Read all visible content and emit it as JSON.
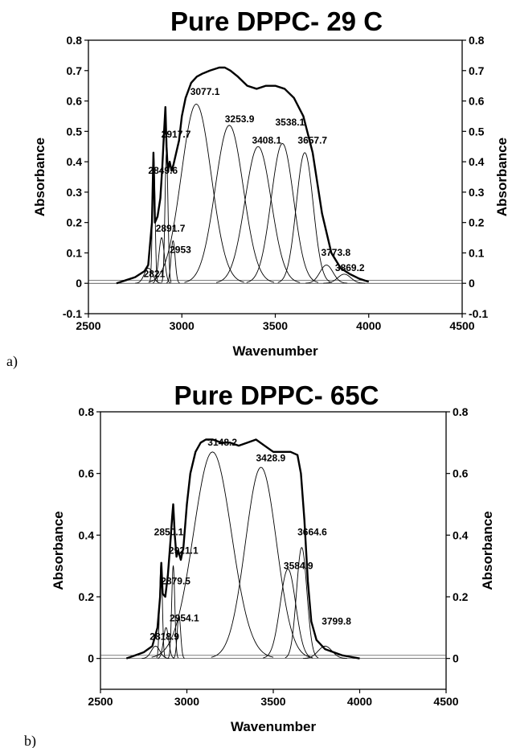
{
  "chart_data": [
    {
      "type": "line",
      "panel_label": "a)",
      "title": "Pure DPPC- 29 C",
      "xlabel": "Wavenumber",
      "ylabel": "Absorbance",
      "ylabel_right": "Absorbance",
      "xlim": [
        2500,
        4500
      ],
      "ylim": [
        -0.1,
        0.8
      ],
      "xticks": [
        2500,
        3000,
        3500,
        4000,
        4500
      ],
      "yticks": [
        -0.1,
        0,
        0.1,
        0.2,
        0.3,
        0.4,
        0.5,
        0.6,
        0.7,
        0.8
      ],
      "ytick_labels": [
        "-0.1",
        "0",
        "0.1",
        "0.2",
        "0.3",
        "0.4",
        "0.5",
        "0.6",
        "0.7",
        "0.8"
      ],
      "grid": false,
      "series": [
        {
          "x": [
            2650,
            2700,
            2750,
            2800,
            2820,
            2840,
            2848,
            2856,
            2870,
            2885,
            2895,
            2905,
            2912,
            2918,
            2925,
            2935,
            2945,
            2955,
            2970,
            2985,
            3000,
            3020,
            3050,
            3080,
            3110,
            3150,
            3200,
            3230,
            3260,
            3300,
            3350,
            3400,
            3450,
            3500,
            3550,
            3600,
            3650,
            3700,
            3750,
            3800,
            3850,
            3900,
            3950,
            4000
          ],
          "y": [
            0.0,
            0.01,
            0.02,
            0.04,
            0.06,
            0.2,
            0.43,
            0.2,
            0.22,
            0.28,
            0.38,
            0.5,
            0.58,
            0.45,
            0.37,
            0.4,
            0.37,
            0.39,
            0.43,
            0.47,
            0.55,
            0.61,
            0.66,
            0.68,
            0.69,
            0.7,
            0.71,
            0.71,
            0.7,
            0.68,
            0.65,
            0.64,
            0.65,
            0.65,
            0.64,
            0.61,
            0.55,
            0.43,
            0.23,
            0.1,
            0.05,
            0.03,
            0.015,
            0.005
          ]
        }
      ],
      "components": [
        {
          "label": "2821",
          "center": 2821,
          "height": 0.05,
          "width": 22,
          "label_x": 2795,
          "label_y": 0.02
        },
        {
          "label": "2849.6",
          "center": 2849.6,
          "height": 0.42,
          "width": 7,
          "label_x": 2820,
          "label_y": 0.36
        },
        {
          "label": "2891.7",
          "center": 2891.7,
          "height": 0.15,
          "width": 15,
          "label_x": 2860,
          "label_y": 0.17
        },
        {
          "label": "2917.7",
          "center": 2917.7,
          "height": 0.43,
          "width": 8,
          "label_x": 2890,
          "label_y": 0.48
        },
        {
          "label": "2953",
          "center": 2953,
          "height": 0.14,
          "width": 11,
          "label_x": 2935,
          "label_y": 0.1
        },
        {
          "label": "3077.1",
          "center": 3077.1,
          "height": 0.59,
          "width": 80,
          "label_x": 3045,
          "label_y": 0.62
        },
        {
          "label": "3253.9",
          "center": 3253.9,
          "height": 0.52,
          "width": 75,
          "label_x": 3230,
          "label_y": 0.53
        },
        {
          "label": "3408.1",
          "center": 3408.1,
          "height": 0.45,
          "width": 70,
          "label_x": 3375,
          "label_y": 0.46
        },
        {
          "label": "3538.1",
          "center": 3538.1,
          "height": 0.46,
          "width": 60,
          "label_x": 3500,
          "label_y": 0.52
        },
        {
          "label": "3657.7",
          "center": 3657.7,
          "height": 0.43,
          "width": 45,
          "label_x": 3620,
          "label_y": 0.46
        },
        {
          "label": "3773.8",
          "center": 3773.8,
          "height": 0.06,
          "width": 35,
          "label_x": 3745,
          "label_y": 0.09
        },
        {
          "label": "3869.2",
          "center": 3869.2,
          "height": 0.03,
          "width": 35,
          "label_x": 3820,
          "label_y": 0.04
        }
      ]
    },
    {
      "type": "line",
      "panel_label": "b)",
      "title": "Pure DPPC- 65C",
      "xlabel": "Wavenumber",
      "ylabel": "Absorbance",
      "ylabel_right": "Absorbance",
      "xlim": [
        2500,
        4500
      ],
      "ylim": [
        -0.1,
        0.8
      ],
      "xticks": [
        2500,
        3000,
        3500,
        4000,
        4500
      ],
      "yticks": [
        0,
        0.2,
        0.4,
        0.6,
        0.8
      ],
      "ytick_labels": [
        "0",
        "0.2",
        "0.4",
        "0.6",
        "0.8"
      ],
      "grid": false,
      "series": [
        {
          "x": [
            2650,
            2700,
            2750,
            2800,
            2830,
            2845,
            2852,
            2860,
            2875,
            2890,
            2905,
            2915,
            2921,
            2930,
            2940,
            2950,
            2965,
            2980,
            3000,
            3020,
            3050,
            3080,
            3110,
            3150,
            3200,
            3250,
            3300,
            3350,
            3400,
            3450,
            3500,
            3550,
            3600,
            3640,
            3660,
            3680,
            3700,
            3720,
            3750,
            3800,
            3850,
            3900,
            3950,
            4000
          ],
          "y": [
            0.0,
            0.01,
            0.02,
            0.04,
            0.1,
            0.2,
            0.31,
            0.21,
            0.2,
            0.27,
            0.38,
            0.46,
            0.5,
            0.4,
            0.33,
            0.35,
            0.32,
            0.36,
            0.5,
            0.6,
            0.67,
            0.7,
            0.71,
            0.71,
            0.7,
            0.7,
            0.69,
            0.7,
            0.71,
            0.69,
            0.67,
            0.67,
            0.67,
            0.66,
            0.6,
            0.45,
            0.25,
            0.12,
            0.06,
            0.03,
            0.02,
            0.01,
            0.005,
            0.0
          ]
        }
      ],
      "components": [
        {
          "label": "2818.9",
          "center": 2818.9,
          "height": 0.04,
          "width": 25,
          "label_x": 2785,
          "label_y": 0.06
        },
        {
          "label": "2850.1",
          "center": 2850.1,
          "height": 0.31,
          "width": 8,
          "label_x": 2810,
          "label_y": 0.4
        },
        {
          "label": "2879.5",
          "center": 2879.5,
          "height": 0.1,
          "width": 15,
          "label_x": 2850,
          "label_y": 0.24
        },
        {
          "label": "2921.1",
          "center": 2921.1,
          "height": 0.3,
          "width": 9,
          "label_x": 2895,
          "label_y": 0.34
        },
        {
          "label": "2954.1",
          "center": 2954.1,
          "height": 0.14,
          "width": 10,
          "label_x": 2900,
          "label_y": 0.12
        },
        {
          "label": "3148.2",
          "center": 3148.2,
          "height": 0.67,
          "width": 110,
          "label_x": 3120,
          "label_y": 0.69
        },
        {
          "label": "3428.9",
          "center": 3428.9,
          "height": 0.62,
          "width": 90,
          "label_x": 3400,
          "label_y": 0.64
        },
        {
          "label": "3584.9",
          "center": 3584.9,
          "height": 0.29,
          "width": 45,
          "label_x": 3560,
          "label_y": 0.29
        },
        {
          "label": "3664.6",
          "center": 3664.6,
          "height": 0.36,
          "width": 30,
          "label_x": 3640,
          "label_y": 0.4
        },
        {
          "label": "3799.8",
          "center": 3799.8,
          "height": 0.04,
          "width": 40,
          "label_x": 3780,
          "label_y": 0.11
        }
      ]
    }
  ]
}
